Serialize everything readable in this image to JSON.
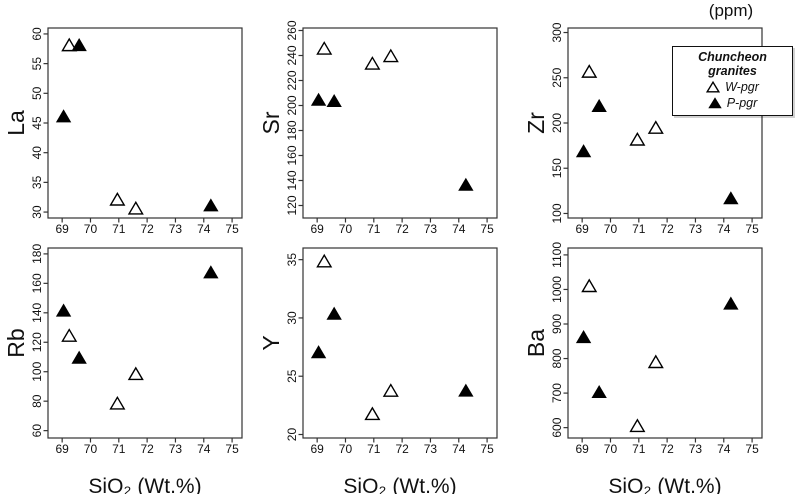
{
  "figure": {
    "unit_label": "(ppm)",
    "legend": {
      "title": "Chuncheon granites",
      "entries": [
        {
          "label": "W-pgr",
          "marker": "open-triangle"
        },
        {
          "label": "P-pgr",
          "marker": "filled-triangle"
        }
      ]
    }
  },
  "chart_data": [
    {
      "type": "scatter",
      "title": "La vs SiO2",
      "ylabel": "La",
      "xlabel": "SiO₂ (Wt.%)",
      "show_xlabel": false,
      "xlim": [
        68.5,
        75.35
      ],
      "xticks": [
        69,
        70,
        71,
        72,
        73,
        74,
        75
      ],
      "ylim": [
        29,
        61
      ],
      "yticks": [
        30,
        35,
        40,
        45,
        50,
        55,
        60
      ],
      "series": [
        {
          "name": "W-pgr",
          "marker": "open-triangle",
          "points": [
            [
              69.25,
              58
            ],
            [
              70.95,
              32
            ],
            [
              71.6,
              30.5
            ]
          ]
        },
        {
          "name": "P-pgr",
          "marker": "filled-triangle",
          "points": [
            [
              69.05,
              46
            ],
            [
              69.6,
              58
            ],
            [
              74.25,
              31
            ]
          ]
        }
      ]
    },
    {
      "type": "scatter",
      "title": "Sr vs SiO2",
      "ylabel": "Sr",
      "xlabel": "SiO₂ (Wt.%)",
      "show_xlabel": false,
      "xlim": [
        68.5,
        75.35
      ],
      "xticks": [
        69,
        70,
        71,
        72,
        73,
        74,
        75
      ],
      "ylim": [
        110,
        262
      ],
      "yticks": [
        120,
        140,
        160,
        180,
        200,
        220,
        240,
        260
      ],
      "series": [
        {
          "name": "W-pgr",
          "marker": "open-triangle",
          "points": [
            [
              69.25,
              245
            ],
            [
              70.95,
              233
            ],
            [
              71.6,
              239
            ]
          ]
        },
        {
          "name": "P-pgr",
          "marker": "filled-triangle",
          "points": [
            [
              69.05,
              204
            ],
            [
              69.6,
              203
            ],
            [
              74.25,
              136
            ]
          ]
        }
      ]
    },
    {
      "type": "scatter",
      "title": "Zr vs SiO2",
      "ylabel": "Zr",
      "xlabel": "SiO₂ (Wt.%)",
      "show_xlabel": false,
      "xlim": [
        68.5,
        75.35
      ],
      "xticks": [
        69,
        70,
        71,
        72,
        73,
        74,
        75
      ],
      "ylim": [
        95,
        305
      ],
      "yticks": [
        100,
        150,
        200,
        250,
        300
      ],
      "series": [
        {
          "name": "W-pgr",
          "marker": "open-triangle",
          "points": [
            [
              69.25,
              256
            ],
            [
              70.95,
              181
            ],
            [
              71.6,
              194
            ]
          ]
        },
        {
          "name": "P-pgr",
          "marker": "filled-triangle",
          "points": [
            [
              69.05,
              168
            ],
            [
              69.6,
              218
            ],
            [
              74.25,
              116
            ]
          ]
        }
      ]
    },
    {
      "type": "scatter",
      "title": "Rb vs SiO2",
      "ylabel": "Rb",
      "xlabel": "SiO₂ (Wt.%)",
      "show_xlabel": true,
      "xlim": [
        68.5,
        75.35
      ],
      "xticks": [
        69,
        70,
        71,
        72,
        73,
        74,
        75
      ],
      "ylim": [
        55,
        184
      ],
      "yticks": [
        60,
        80,
        100,
        120,
        140,
        160,
        180
      ],
      "series": [
        {
          "name": "W-pgr",
          "marker": "open-triangle",
          "points": [
            [
              69.25,
              124
            ],
            [
              70.95,
              78
            ],
            [
              71.6,
              98
            ]
          ]
        },
        {
          "name": "P-pgr",
          "marker": "filled-triangle",
          "points": [
            [
              69.05,
              141
            ],
            [
              69.6,
              109
            ],
            [
              74.25,
              167
            ]
          ]
        }
      ]
    },
    {
      "type": "scatter",
      "title": "Y vs SiO2",
      "ylabel": "Y",
      "xlabel": "SiO₂ (Wt.%)",
      "show_xlabel": true,
      "xlim": [
        68.5,
        75.35
      ],
      "xticks": [
        69,
        70,
        71,
        72,
        73,
        74,
        75
      ],
      "ylim": [
        19.7,
        36
      ],
      "yticks": [
        20,
        25,
        30,
        35
      ],
      "series": [
        {
          "name": "W-pgr",
          "marker": "open-triangle",
          "points": [
            [
              69.25,
              34.8
            ],
            [
              70.95,
              21.7
            ],
            [
              71.6,
              23.7
            ]
          ]
        },
        {
          "name": "P-pgr",
          "marker": "filled-triangle",
          "points": [
            [
              69.05,
              27
            ],
            [
              69.6,
              30.3
            ],
            [
              74.25,
              23.7
            ]
          ]
        }
      ]
    },
    {
      "type": "scatter",
      "title": "Ba vs SiO2",
      "ylabel": "Ba",
      "xlabel": "SiO₂ (Wt.%)",
      "show_xlabel": true,
      "xlim": [
        68.5,
        75.35
      ],
      "xticks": [
        69,
        70,
        71,
        72,
        73,
        74,
        75
      ],
      "ylim": [
        570,
        1120
      ],
      "yticks": [
        600,
        700,
        800,
        900,
        1000,
        1100
      ],
      "series": [
        {
          "name": "W-pgr",
          "marker": "open-triangle",
          "points": [
            [
              69.25,
              1008
            ],
            [
              70.95,
              603
            ],
            [
              71.6,
              788
            ]
          ]
        },
        {
          "name": "P-pgr",
          "marker": "filled-triangle",
          "points": [
            [
              69.05,
              860
            ],
            [
              69.6,
              701
            ],
            [
              74.25,
              957
            ]
          ]
        }
      ]
    }
  ]
}
